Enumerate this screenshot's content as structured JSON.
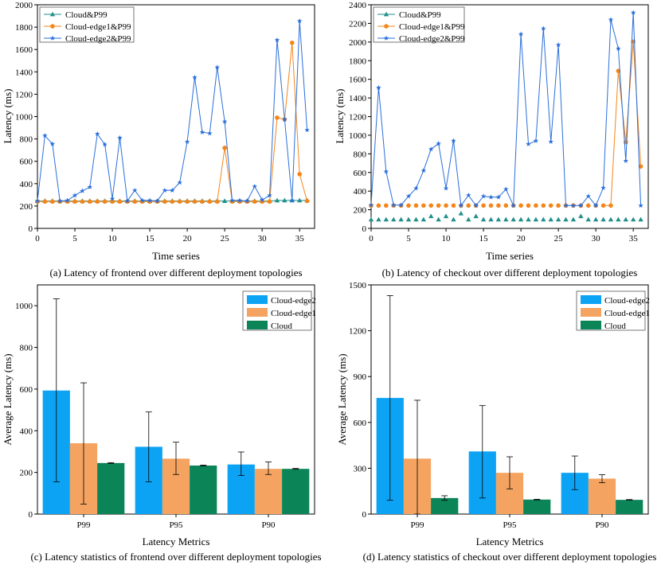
{
  "chart_data": [
    {
      "type": "line",
      "caption": "(a) Latency of frontend over different deployment topologies",
      "xlabel": "Time series",
      "ylabel": "Latency (ms)",
      "xlim": [
        0,
        37
      ],
      "ylim": [
        0,
        2000
      ],
      "xticks": [
        0,
        5,
        10,
        15,
        20,
        25,
        30,
        35
      ],
      "yticks": [
        0,
        200,
        400,
        600,
        800,
        1000,
        1200,
        1400,
        1600,
        1800,
        2000
      ],
      "series": [
        {
          "name": "Cloud&P99",
          "color": "#1f8f8a",
          "marker": "triangle",
          "style": "markers-line",
          "x": [
            0,
            1,
            2,
            3,
            4,
            5,
            6,
            7,
            8,
            9,
            10,
            11,
            12,
            13,
            14,
            15,
            16,
            17,
            18,
            19,
            20,
            21,
            22,
            23,
            24,
            25,
            26,
            27,
            28,
            29,
            30,
            31,
            32,
            33,
            34,
            35,
            36
          ],
          "values": [
            245,
            245,
            245,
            245,
            245,
            245,
            245,
            245,
            245,
            245,
            245,
            245,
            245,
            245,
            245,
            245,
            245,
            245,
            245,
            245,
            245,
            245,
            245,
            245,
            245,
            245,
            245,
            245,
            245,
            245,
            245,
            245,
            250,
            250,
            250,
            250,
            250
          ]
        },
        {
          "name": "Cloud-edge1&P99",
          "color": "#f58518",
          "marker": "circle",
          "style": "markers-line",
          "x": [
            0,
            1,
            2,
            3,
            4,
            5,
            6,
            7,
            8,
            9,
            10,
            11,
            12,
            13,
            14,
            15,
            16,
            17,
            18,
            19,
            20,
            21,
            22,
            23,
            24,
            25,
            26,
            27,
            28,
            29,
            30,
            31,
            32,
            33,
            34,
            35,
            36
          ],
          "values": [
            240,
            240,
            240,
            240,
            240,
            240,
            240,
            240,
            240,
            240,
            240,
            240,
            240,
            240,
            240,
            240,
            240,
            240,
            240,
            240,
            240,
            240,
            240,
            240,
            240,
            720,
            240,
            240,
            240,
            240,
            240,
            240,
            990,
            975,
            1660,
            485,
            245
          ]
        },
        {
          "name": "Cloud-edge2&P99",
          "color": "#2a6fdb",
          "marker": "star",
          "style": "line",
          "x": [
            0,
            1,
            2,
            3,
            4,
            5,
            6,
            7,
            8,
            9,
            10,
            11,
            12,
            13,
            14,
            15,
            16,
            17,
            18,
            19,
            20,
            21,
            22,
            23,
            24,
            25,
            26,
            27,
            28,
            29,
            30,
            31,
            32,
            33,
            34,
            35,
            36
          ],
          "values": [
            245,
            830,
            755,
            245,
            250,
            295,
            335,
            370,
            845,
            750,
            265,
            810,
            245,
            340,
            250,
            250,
            245,
            340,
            340,
            410,
            775,
            1350,
            860,
            850,
            1440,
            955,
            250,
            250,
            245,
            375,
            255,
            295,
            1685,
            975,
            250,
            1855,
            880
          ]
        }
      ]
    },
    {
      "type": "line",
      "caption": "(b) Latency of checkout over different deployment topologies",
      "xlabel": "Time series",
      "ylabel": "Latency (ms)",
      "xlim": [
        0,
        37
      ],
      "ylim": [
        0,
        2400
      ],
      "xticks": [
        0,
        5,
        10,
        15,
        20,
        25,
        30,
        35
      ],
      "yticks": [
        0,
        200,
        400,
        600,
        800,
        1000,
        1200,
        1400,
        1600,
        1800,
        2000,
        2200,
        2400
      ],
      "series": [
        {
          "name": "Cloud&P99",
          "color": "#1f8f8a",
          "marker": "triangle",
          "style": "markers",
          "x": [
            0,
            1,
            2,
            3,
            4,
            5,
            6,
            7,
            8,
            9,
            10,
            11,
            12,
            13,
            14,
            15,
            16,
            17,
            18,
            19,
            20,
            21,
            22,
            23,
            24,
            25,
            26,
            27,
            28,
            29,
            30,
            31,
            32,
            33,
            34,
            35,
            36
          ],
          "values": [
            95,
            95,
            95,
            95,
            95,
            95,
            95,
            95,
            130,
            95,
            130,
            95,
            160,
            95,
            130,
            95,
            95,
            95,
            95,
            95,
            95,
            95,
            95,
            95,
            95,
            95,
            95,
            95,
            130,
            95,
            95,
            95,
            95,
            95,
            95,
            95,
            95
          ]
        },
        {
          "name": "Cloud-edge1&P99",
          "color": "#f58518",
          "marker": "circle",
          "style": "markers-tail",
          "x": [
            0,
            1,
            2,
            3,
            4,
            5,
            6,
            7,
            8,
            9,
            10,
            11,
            12,
            13,
            14,
            15,
            16,
            17,
            18,
            19,
            20,
            21,
            22,
            23,
            24,
            25,
            26,
            27,
            28,
            29,
            30,
            31,
            32,
            33,
            34,
            35,
            36
          ],
          "values": [
            245,
            245,
            245,
            245,
            245,
            245,
            245,
            245,
            245,
            245,
            245,
            245,
            245,
            245,
            245,
            245,
            245,
            245,
            245,
            245,
            245,
            245,
            245,
            245,
            245,
            245,
            245,
            245,
            245,
            245,
            245,
            245,
            245,
            1690,
            925,
            2005,
            665
          ]
        },
        {
          "name": "Cloud-edge2&P99",
          "color": "#2a6fdb",
          "marker": "star",
          "style": "line",
          "x": [
            0,
            1,
            2,
            3,
            4,
            5,
            6,
            7,
            8,
            9,
            10,
            11,
            12,
            13,
            14,
            15,
            16,
            17,
            18,
            19,
            20,
            21,
            22,
            23,
            24,
            25,
            26,
            27,
            28,
            29,
            30,
            31,
            32,
            33,
            34,
            35,
            36
          ],
          "values": [
            250,
            1510,
            610,
            250,
            250,
            345,
            430,
            620,
            850,
            910,
            430,
            940,
            245,
            355,
            245,
            345,
            335,
            335,
            420,
            245,
            2085,
            905,
            940,
            2145,
            930,
            1970,
            245,
            245,
            245,
            345,
            245,
            435,
            2240,
            1930,
            725,
            2315,
            245
          ]
        }
      ]
    },
    {
      "type": "bar",
      "caption": "(c) Latency statistics of frontend over different deployment topologies",
      "xlabel": "Latency Metrics",
      "ylabel": "Average Latency (ms)",
      "ylim": [
        0,
        1100
      ],
      "yticks": [
        0,
        200,
        400,
        600,
        800,
        1000
      ],
      "categories": [
        "P99",
        "P95",
        "P90"
      ],
      "series": [
        {
          "name": "Cloud-edge2",
          "color": "#0da3f5",
          "values": [
            593,
            323,
            238
          ],
          "err_low": [
            155,
            155,
            185
          ],
          "err_high": [
            1033,
            490,
            298
          ]
        },
        {
          "name": "Cloud-edge1",
          "color": "#f4a460",
          "values": [
            340,
            266,
            217
          ],
          "err_low": [
            48,
            190,
            190
          ],
          "err_high": [
            630,
            345,
            250
          ]
        },
        {
          "name": "Cloud",
          "color": "#0b8457",
          "values": [
            245,
            233,
            217
          ],
          "err_low": [
            243,
            231,
            215
          ],
          "err_high": [
            247,
            235,
            219
          ]
        }
      ]
    },
    {
      "type": "bar",
      "caption": "(d) Latency statistics of checkout over different deployment topologies",
      "xlabel": "Latency Metrics",
      "ylabel": "Average Latency (ms)",
      "ylim": [
        0,
        1500
      ],
      "yticks": [
        0,
        300,
        600,
        900,
        1200,
        1500
      ],
      "categories": [
        "P99",
        "P95",
        "P90"
      ],
      "series": [
        {
          "name": "Cloud-edge2",
          "color": "#0da3f5",
          "values": [
            760,
            410,
            270
          ],
          "err_low": [
            90,
            105,
            160
          ],
          "err_high": [
            1430,
            710,
            380
          ]
        },
        {
          "name": "Cloud-edge1",
          "color": "#f4a460",
          "values": [
            363,
            270,
            232
          ],
          "err_low": [
            0,
            165,
            205
          ],
          "err_high": [
            745,
            375,
            258
          ]
        },
        {
          "name": "Cloud",
          "color": "#0b8457",
          "values": [
            105,
            95,
            93
          ],
          "err_low": [
            90,
            93,
            91
          ],
          "err_high": [
            120,
            97,
            95
          ]
        }
      ]
    }
  ]
}
